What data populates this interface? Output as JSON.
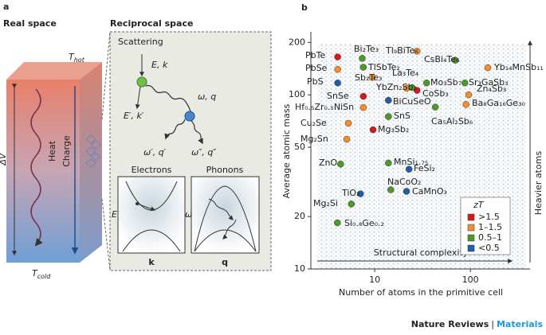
{
  "panel_a": {
    "letter": "a",
    "real_space": "Real space",
    "reciprocal_space": "Reciprocal space",
    "scattering": "Scattering",
    "incoming": "E, k",
    "outgoing": "E′, k′",
    "phonon": "ω, q",
    "phonon_1": "ω′, q′",
    "phonon_2": "ω″, q″",
    "electrons": "Electrons",
    "phonons": "Phonons",
    "e_axis": "E",
    "k_axis": "k",
    "w_axis": "ω",
    "q_axis": "q",
    "t_symbol": "T",
    "hot": "hot",
    "cold": "cold",
    "delta_v": "ΔV",
    "heat": "Heat",
    "charge": "Charge"
  },
  "chart_data": {
    "type": "scatter",
    "letter": "b",
    "xlabel": "Number of atoms in the primitive cell",
    "ylabel": "Average atomic mass",
    "xscale": "log",
    "yscale": "log",
    "xlim": [
      2.15,
      420
    ],
    "ylim": [
      10,
      230
    ],
    "xticks": [
      10,
      100
    ],
    "yticks": [
      10,
      20,
      50,
      100,
      200
    ],
    "legend_title": "zT",
    "legend": "lower right",
    "x_arrow": "Structural complexity",
    "y_arrow": "Heavier atoms",
    "series": [
      {
        "name": ">1.5",
        "color": "#d7191c",
        "labels": [
          "PbTe",
          "SnSe",
          "CoSb₃",
          "Mg₃Sb₂"
        ],
        "x": [
          4.1,
          7.6,
          27.7,
          9.6
        ],
        "values": [
          165,
          98,
          106,
          63
        ]
      },
      {
        "name": "1–1.5",
        "color": "#f28e2b",
        "labels": [
          "PbSe",
          "Tl₉BiTe₆",
          "Sb₂Te₃",
          "La₃Te₄",
          "Yb₁₄MnSb₁₁",
          "Zn₄Sb₃",
          "Ba₈Ga₁₆Ge₃₀",
          "Hf₀.₅Zr₀.₅NiSn",
          "Cu₂Se",
          "Mg₂Sn"
        ],
        "x": [
          4.1,
          27.7,
          9.4,
          21.5,
          152,
          96,
          90,
          7.6,
          5.3,
          5.1
        ],
        "values": [
          140,
          178,
          126,
          109,
          143,
          100,
          88,
          84.5,
          68.6,
          55.6
        ]
      },
      {
        "name": "0.5–1",
        "color": "#4d9a2a",
        "labels": [
          "Bi₂Te₃",
          "TlSbTe₂",
          "CsBi₄Te₆",
          "YbZn₂Sb₂",
          "Mo₃Sb₇",
          "Sr₃GaSb₃",
          "Ca₅Al₂Sb₆",
          "SnS",
          "ZnO",
          "MnSi₁.₇₅",
          "NaCoO₂",
          "Mg₂Si",
          "Si₀.₈Ge₀.₂"
        ],
        "x": [
          7.4,
          7.6,
          69.5,
          24.6,
          34.8,
          87.5,
          43,
          13.9,
          4.4,
          13.9,
          14.7,
          5.7,
          4.07
        ],
        "values": [
          162,
          144,
          158,
          110,
          117,
          117,
          85,
          75,
          40,
          40.6,
          28.5,
          23.6,
          18.4
        ]
      },
      {
        "name": "<0.5",
        "color": "#1f5fa8",
        "labels": [
          "PbS",
          "BiCuSeO",
          "FeSi₂",
          "CaMnO₃",
          "TiO₂"
        ],
        "x": [
          4.1,
          13.9,
          22.8,
          21.5,
          7.1
        ],
        "values": [
          117,
          93,
          37.4,
          27.9,
          27
        ]
      }
    ]
  },
  "footer": {
    "journal": "Nature Reviews",
    "separator": "|",
    "section": "Materials"
  }
}
